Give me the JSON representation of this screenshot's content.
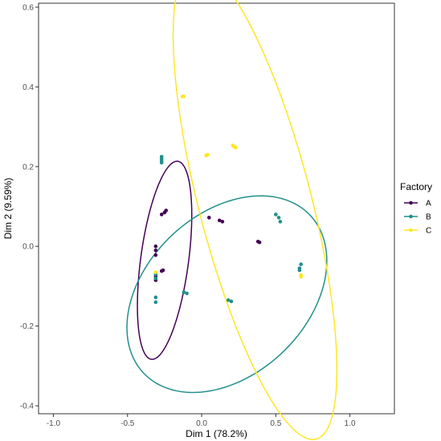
{
  "chart_data": {
    "type": "scatter",
    "title": "",
    "xlabel": "Dim 1 (78.2%)",
    "ylabel": "Dim 2 (9.59%)",
    "xlim": [
      -1.1,
      1.3
    ],
    "ylim": [
      -0.42,
      0.61
    ],
    "xticks": [
      -1.0,
      -0.5,
      0.0,
      0.5,
      1.0
    ],
    "xtick_labels": [
      "-1.0",
      "-0.5",
      "0.0",
      "0.5",
      "1.0"
    ],
    "yticks": [
      -0.4,
      -0.2,
      0.0,
      0.2,
      0.4,
      0.6
    ],
    "ytick_labels": [
      "-0.4",
      "-0.2",
      "0.0",
      "0.2",
      "0.4",
      "0.6"
    ],
    "grid": false,
    "legend": {
      "title": "Factory",
      "position": "right"
    },
    "series": [
      {
        "name": "A",
        "color": "#440154",
        "points": [
          [
            -0.27,
            0.08
          ],
          [
            -0.25,
            0.085
          ],
          [
            -0.24,
            0.09
          ],
          [
            0.05,
            0.072
          ],
          [
            0.12,
            0.065
          ],
          [
            0.14,
            0.062
          ],
          [
            -0.31,
            0.0
          ],
          [
            -0.31,
            -0.01
          ],
          [
            -0.31,
            -0.022
          ],
          [
            0.38,
            0.012
          ],
          [
            0.39,
            0.01
          ],
          [
            -0.27,
            -0.062
          ],
          [
            -0.26,
            -0.06
          ],
          [
            -0.31,
            -0.075
          ],
          [
            -0.31,
            -0.08
          ],
          [
            -0.31,
            -0.085
          ]
        ],
        "ellipse": {
          "center": [
            -0.25,
            -0.035
          ],
          "semi_axes": [
            0.27,
            0.15
          ],
          "angle_deg": 62
        }
      },
      {
        "name": "B",
        "color": "#21908C",
        "points": [
          [
            -0.27,
            0.225
          ],
          [
            -0.27,
            0.22
          ],
          [
            -0.27,
            0.215
          ],
          [
            -0.27,
            0.21
          ],
          [
            0.5,
            0.08
          ],
          [
            0.52,
            0.072
          ],
          [
            0.53,
            0.062
          ],
          [
            -0.31,
            -0.07
          ],
          [
            -0.31,
            -0.08
          ],
          [
            0.67,
            -0.045
          ],
          [
            0.66,
            -0.055
          ],
          [
            0.66,
            -0.06
          ],
          [
            -0.12,
            -0.115
          ],
          [
            -0.1,
            -0.118
          ],
          [
            -0.31,
            -0.128
          ],
          [
            -0.31,
            -0.14
          ],
          [
            0.18,
            -0.135
          ],
          [
            0.2,
            -0.138
          ]
        ],
        "ellipse": {
          "center": [
            0.17,
            -0.12
          ],
          "semi_axes": [
            0.68,
            0.23
          ],
          "angle_deg": 8
        }
      },
      {
        "name": "C",
        "color": "#FDE725",
        "points": [
          [
            -0.13,
            0.376
          ],
          [
            -0.12,
            0.376
          ],
          [
            0.03,
            0.228
          ],
          [
            0.04,
            0.23
          ],
          [
            0.21,
            0.253
          ],
          [
            0.22,
            0.25
          ],
          [
            0.23,
            0.248
          ],
          [
            -0.31,
            -0.065
          ],
          [
            0.67,
            -0.072
          ],
          [
            0.67,
            -0.076
          ]
        ],
        "ellipse": {
          "center": [
            0.36,
            0.11
          ],
          "semi_axes": [
            0.75,
            0.31
          ],
          "angle_deg": -48
        }
      }
    ]
  }
}
